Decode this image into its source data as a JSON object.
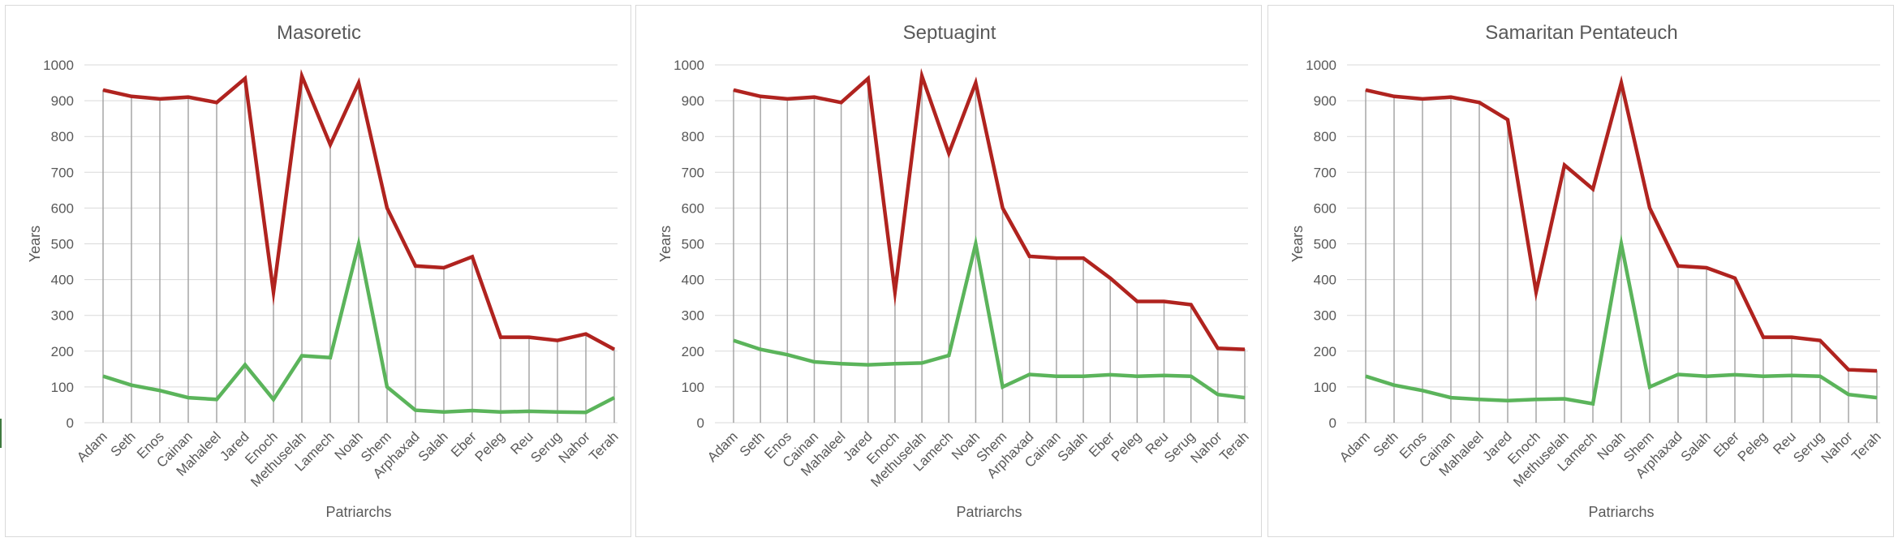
{
  "chart_data": [
    {
      "type": "line",
      "title": "Masoretic",
      "xlabel": "Patriarchs",
      "ylabel": "Years",
      "ylim": [
        0,
        1000
      ],
      "yticks": [
        0,
        100,
        200,
        300,
        400,
        500,
        600,
        700,
        800,
        900,
        1000
      ],
      "grid": true,
      "drop_lines": true,
      "categories": [
        "Adam",
        "Seth",
        "Enos",
        "Cainan",
        "Mahaleel",
        "Jared",
        "Enoch",
        "Methuselah",
        "Lamech",
        "Noah",
        "Shem",
        "Arphaxad",
        "Salah",
        "Eber",
        "Peleg",
        "Reu",
        "Serug",
        "Nahor",
        "Terah"
      ],
      "series": [
        {
          "color": "#b0231f",
          "values": [
            930,
            912,
            905,
            910,
            895,
            962,
            365,
            969,
            777,
            950,
            600,
            438,
            433,
            464,
            239,
            239,
            230,
            248,
            205
          ]
        },
        {
          "color": "#5bb45b",
          "values": [
            130,
            105,
            90,
            70,
            65,
            162,
            65,
            187,
            182,
            500,
            100,
            35,
            30,
            34,
            30,
            32,
            30,
            29,
            70
          ]
        }
      ]
    },
    {
      "type": "line",
      "title": "Septuagint",
      "xlabel": "Patriarchs",
      "ylabel": "Years",
      "ylim": [
        0,
        1000
      ],
      "yticks": [
        0,
        100,
        200,
        300,
        400,
        500,
        600,
        700,
        800,
        900,
        1000
      ],
      "grid": true,
      "drop_lines": true,
      "categories": [
        "Adam",
        "Seth",
        "Enos",
        "Cainan",
        "Mahaleel",
        "Jared",
        "Enoch",
        "Methuselah",
        "Lamech",
        "Noah",
        "Shem",
        "Arphaxad",
        "Cainan",
        "Salah",
        "Eber",
        "Peleg",
        "Reu",
        "Serug",
        "Nahor",
        "Terah"
      ],
      "series": [
        {
          "color": "#b0231f",
          "values": [
            930,
            912,
            905,
            910,
            895,
            962,
            365,
            969,
            753,
            950,
            600,
            465,
            460,
            460,
            404,
            339,
            339,
            330,
            208,
            205
          ]
        },
        {
          "color": "#5bb45b",
          "values": [
            230,
            205,
            190,
            170,
            165,
            162,
            165,
            167,
            188,
            500,
            100,
            135,
            130,
            130,
            134,
            130,
            132,
            130,
            79,
            70
          ]
        }
      ]
    },
    {
      "type": "line",
      "title": "Samaritan Pentateuch",
      "xlabel": "Patriarchs",
      "ylabel": "Years",
      "ylim": [
        0,
        1000
      ],
      "yticks": [
        0,
        100,
        200,
        300,
        400,
        500,
        600,
        700,
        800,
        900,
        1000
      ],
      "grid": true,
      "drop_lines": true,
      "categories": [
        "Adam",
        "Seth",
        "Enos",
        "Cainan",
        "Mahaleel",
        "Jared",
        "Enoch",
        "Methuselah",
        "Lamech",
        "Noah",
        "Shem",
        "Arphaxad",
        "Salah",
        "Eber",
        "Peleg",
        "Reu",
        "Serug",
        "Nahor",
        "Terah"
      ],
      "series": [
        {
          "color": "#b0231f",
          "values": [
            930,
            912,
            905,
            910,
            895,
            847,
            365,
            720,
            653,
            950,
            600,
            438,
            433,
            404,
            239,
            239,
            230,
            148,
            145
          ]
        },
        {
          "color": "#5bb45b",
          "values": [
            130,
            105,
            90,
            70,
            65,
            62,
            65,
            67,
            53,
            500,
            100,
            135,
            130,
            134,
            130,
            132,
            130,
            79,
            70
          ]
        }
      ]
    }
  ]
}
